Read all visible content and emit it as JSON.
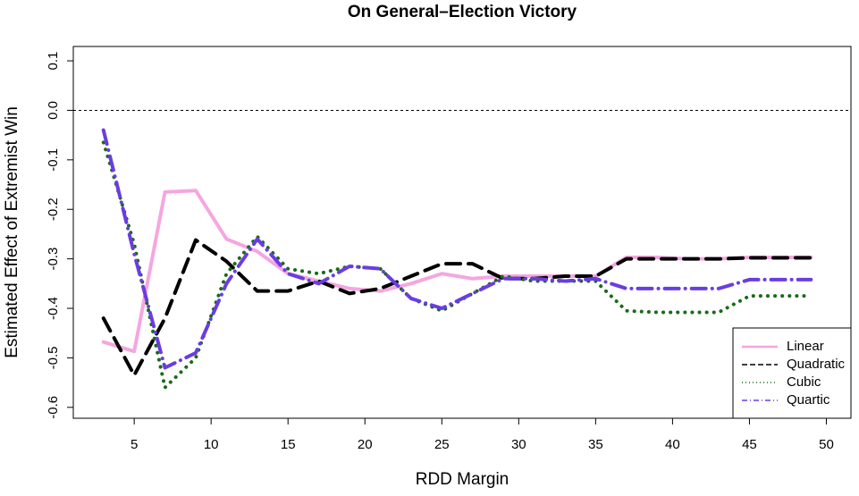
{
  "chart_data": {
    "type": "line",
    "title": "On General–Election Victory",
    "xlabel": "RDD Margin",
    "ylabel": "Estimated Effect of Extremist Win",
    "x": [
      3,
      5,
      7,
      9,
      11,
      13,
      15,
      17,
      19,
      21,
      23,
      25,
      27,
      29,
      31,
      33,
      35,
      37,
      39,
      41,
      43,
      45,
      47,
      49
    ],
    "series": [
      {
        "name": "Linear",
        "color": "#f5a6e0",
        "linestyle": "solid",
        "values": [
          -0.468,
          -0.487,
          -0.165,
          -0.162,
          -0.26,
          -0.285,
          -0.33,
          -0.345,
          -0.36,
          -0.365,
          -0.35,
          -0.33,
          -0.34,
          -0.335,
          -0.335,
          -0.335,
          -0.335,
          -0.297,
          -0.297,
          -0.3,
          -0.3,
          -0.297,
          -0.297,
          -0.297
        ]
      },
      {
        "name": "Quadratic",
        "color": "#000000",
        "linestyle": "dashed",
        "values": [
          -0.42,
          -0.535,
          -0.42,
          -0.262,
          -0.305,
          -0.365,
          -0.365,
          -0.345,
          -0.37,
          -0.36,
          -0.335,
          -0.31,
          -0.31,
          -0.34,
          -0.34,
          -0.335,
          -0.335,
          -0.3,
          -0.3,
          -0.3,
          -0.3,
          -0.298,
          -0.298,
          -0.298
        ]
      },
      {
        "name": "Cubic",
        "color": "#1a6b1a",
        "linestyle": "dotted",
        "values": [
          -0.065,
          -0.27,
          -0.56,
          -0.5,
          -0.33,
          -0.255,
          -0.32,
          -0.33,
          -0.315,
          -0.32,
          -0.38,
          -0.405,
          -0.37,
          -0.335,
          -0.345,
          -0.345,
          -0.345,
          -0.405,
          -0.408,
          -0.408,
          -0.408,
          -0.375,
          -0.375,
          -0.375
        ]
      },
      {
        "name": "Quartic",
        "color": "#6a3de0",
        "linestyle": "dashdot",
        "values": [
          -0.04,
          -0.29,
          -0.52,
          -0.49,
          -0.35,
          -0.26,
          -0.33,
          -0.35,
          -0.315,
          -0.32,
          -0.38,
          -0.4,
          -0.37,
          -0.34,
          -0.34,
          -0.345,
          -0.34,
          -0.36,
          -0.36,
          -0.36,
          -0.36,
          -0.342,
          -0.342,
          -0.342
        ]
      }
    ],
    "xlim": [
      1.04,
      51.6
    ],
    "xticks": [
      5,
      10,
      15,
      20,
      25,
      30,
      35,
      40,
      45,
      50
    ],
    "ylim": [
      -0.622,
      0.129
    ],
    "yticks": [
      {
        "value": 0.1,
        "label": "0.1"
      },
      {
        "value": 0,
        "label": "0.0"
      },
      -0.1,
      -0.2,
      -0.3,
      -0.4,
      -0.5,
      -0.6
    ],
    "hline": 0,
    "legend": "bottom-right"
  }
}
